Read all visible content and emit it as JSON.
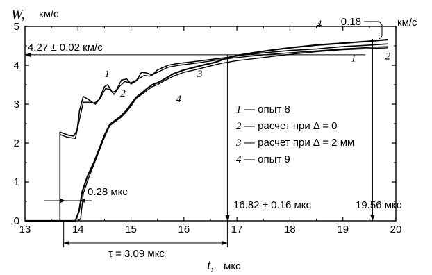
{
  "chart_data": {
    "type": "line",
    "title": "",
    "xlabel": "t,",
    "xlabel_unit": "мкс",
    "ylabel": "W,",
    "ylabel_unit": "км/с",
    "xlim": [
      13,
      20
    ],
    "ylim": [
      0,
      5
    ],
    "x_ticks": [
      "13",
      "14",
      "15",
      "16",
      "17",
      "18",
      "19",
      "20"
    ],
    "y_ticks": [
      "0",
      "1",
      "2",
      "3",
      "4",
      "5"
    ],
    "grid": false,
    "legend_position": "right",
    "series": [
      {
        "name": "опыт 8",
        "number": "1",
        "points": [
          [
            13.0,
            0
          ],
          [
            13.66,
            0
          ],
          [
            13.66,
            2.28
          ],
          [
            13.82,
            2.2
          ],
          [
            13.92,
            2.18
          ],
          [
            13.98,
            2.32
          ],
          [
            14.03,
            2.85
          ],
          [
            14.1,
            3.2
          ],
          [
            14.22,
            3.1
          ],
          [
            14.3,
            3.02
          ],
          [
            14.4,
            3.12
          ],
          [
            14.5,
            3.45
          ],
          [
            14.56,
            3.5
          ],
          [
            14.65,
            3.3
          ],
          [
            14.72,
            3.35
          ],
          [
            14.82,
            3.62
          ],
          [
            14.92,
            3.65
          ],
          [
            15.0,
            3.52
          ],
          [
            15.1,
            3.6
          ],
          [
            15.2,
            3.82
          ],
          [
            15.3,
            3.8
          ],
          [
            15.4,
            3.75
          ],
          [
            15.5,
            3.88
          ],
          [
            15.7,
            4.0
          ],
          [
            15.9,
            4.05
          ],
          [
            16.1,
            4.08
          ],
          [
            16.4,
            4.13
          ],
          [
            16.8,
            4.2
          ],
          [
            17.2,
            4.28
          ],
          [
            17.6,
            4.33
          ],
          [
            18.0,
            4.38
          ],
          [
            18.5,
            4.42
          ],
          [
            19.0,
            4.48
          ],
          [
            19.5,
            4.52
          ],
          [
            19.85,
            4.55
          ]
        ]
      },
      {
        "name": "расчет при Δ = 0",
        "number": "2",
        "points": [
          [
            13.66,
            0
          ],
          [
            13.66,
            2.22
          ],
          [
            13.8,
            2.15
          ],
          [
            13.95,
            2.12
          ],
          [
            14.02,
            2.55
          ],
          [
            14.1,
            3.05
          ],
          [
            14.25,
            3.05
          ],
          [
            14.33,
            3.0
          ],
          [
            14.42,
            3.15
          ],
          [
            14.52,
            3.4
          ],
          [
            14.6,
            3.38
          ],
          [
            14.68,
            3.25
          ],
          [
            14.78,
            3.45
          ],
          [
            14.88,
            3.58
          ],
          [
            15.0,
            3.55
          ],
          [
            15.1,
            3.62
          ],
          [
            15.25,
            3.74
          ],
          [
            15.35,
            3.72
          ],
          [
            15.5,
            3.82
          ],
          [
            15.7,
            3.95
          ],
          [
            15.9,
            4.0
          ],
          [
            16.2,
            4.05
          ],
          [
            16.6,
            4.13
          ],
          [
            17.0,
            4.2
          ],
          [
            17.5,
            4.27
          ],
          [
            18.0,
            4.32
          ],
          [
            18.5,
            4.37
          ],
          [
            19.0,
            4.42
          ],
          [
            19.5,
            4.46
          ],
          [
            19.85,
            4.48
          ]
        ]
      },
      {
        "name": "расчет при Δ = 2 мм",
        "number": "3",
        "points": [
          [
            14.0,
            0
          ],
          [
            14.05,
            0.05
          ],
          [
            14.1,
            0.7
          ],
          [
            14.2,
            1.1
          ],
          [
            14.3,
            1.45
          ],
          [
            14.4,
            1.8
          ],
          [
            14.5,
            2.15
          ],
          [
            14.6,
            2.45
          ],
          [
            14.7,
            2.55
          ],
          [
            14.8,
            2.65
          ],
          [
            14.9,
            2.78
          ],
          [
            15.0,
            2.95
          ],
          [
            15.1,
            3.15
          ],
          [
            15.2,
            3.25
          ],
          [
            15.3,
            3.35
          ],
          [
            15.4,
            3.45
          ],
          [
            15.5,
            3.5
          ],
          [
            15.6,
            3.58
          ],
          [
            15.7,
            3.65
          ],
          [
            15.8,
            3.72
          ],
          [
            16.0,
            3.82
          ],
          [
            16.2,
            3.88
          ],
          [
            16.4,
            3.95
          ],
          [
            16.7,
            4.05
          ],
          [
            17.0,
            4.12
          ],
          [
            17.5,
            4.2
          ],
          [
            18.0,
            4.28
          ],
          [
            18.5,
            4.35
          ],
          [
            19.0,
            4.4
          ],
          [
            19.5,
            4.43
          ],
          [
            19.85,
            4.45
          ]
        ]
      },
      {
        "name": "опыт 9",
        "number": "4",
        "points": [
          [
            13.0,
            0
          ],
          [
            13.95,
            0
          ],
          [
            14.02,
            0.25
          ],
          [
            14.08,
            0.75
          ],
          [
            14.18,
            1.15
          ],
          [
            14.3,
            1.5
          ],
          [
            14.4,
            1.85
          ],
          [
            14.5,
            2.2
          ],
          [
            14.6,
            2.48
          ],
          [
            14.7,
            2.58
          ],
          [
            14.8,
            2.68
          ],
          [
            14.9,
            2.82
          ],
          [
            15.0,
            3.0
          ],
          [
            15.1,
            3.18
          ],
          [
            15.2,
            3.28
          ],
          [
            15.3,
            3.4
          ],
          [
            15.4,
            3.5
          ],
          [
            15.5,
            3.55
          ],
          [
            15.6,
            3.62
          ],
          [
            15.7,
            3.7
          ],
          [
            15.8,
            3.78
          ],
          [
            16.0,
            3.88
          ],
          [
            16.2,
            3.95
          ],
          [
            16.4,
            4.02
          ],
          [
            16.6,
            4.08
          ],
          [
            16.8,
            4.18
          ],
          [
            17.0,
            4.25
          ],
          [
            17.3,
            4.32
          ],
          [
            17.6,
            4.38
          ],
          [
            18.0,
            4.45
          ],
          [
            18.5,
            4.52
          ],
          [
            19.0,
            4.57
          ],
          [
            19.5,
            4.62
          ],
          [
            19.85,
            4.66
          ]
        ]
      }
    ],
    "annotations": {
      "level_label": "4.27 ± 0.02  км/с",
      "level_value": 4.27,
      "delta_top_label": "0.18",
      "delta_top_unit": "км/с",
      "width_label": "0.28  мкс",
      "tau_label": "τ = 3.09  мкс",
      "time1_label": "16.82 ± 0.16  мкс",
      "time1_value": 16.82,
      "time2_label": "19.56  мкс",
      "time2_value": 19.56,
      "start_time": 13.73,
      "width_start": 13.76,
      "width_end": 14.04
    },
    "legend": [
      {
        "number": "1",
        "text": "— опыт  8"
      },
      {
        "number": "2",
        "text": "— расчет  при  Δ = 0"
      },
      {
        "number": "3",
        "text": "— расчет  при  Δ = 2  мм"
      },
      {
        "number": "4",
        "text": "— опыт  9"
      }
    ],
    "curve_labels": [
      {
        "number": "1",
        "x": 14.55,
        "y": 3.7
      },
      {
        "number": "2",
        "x": 14.85,
        "y": 3.2
      },
      {
        "number": "3",
        "x": 16.3,
        "y": 3.7
      },
      {
        "number": "4",
        "x": 15.9,
        "y": 3.05
      },
      {
        "number": "4",
        "x": 18.55,
        "y": 4.98
      },
      {
        "number": "1",
        "x": 19.2,
        "y": 4.1
      },
      {
        "number": "2",
        "x": 19.85,
        "y": 4.15
      }
    ]
  }
}
